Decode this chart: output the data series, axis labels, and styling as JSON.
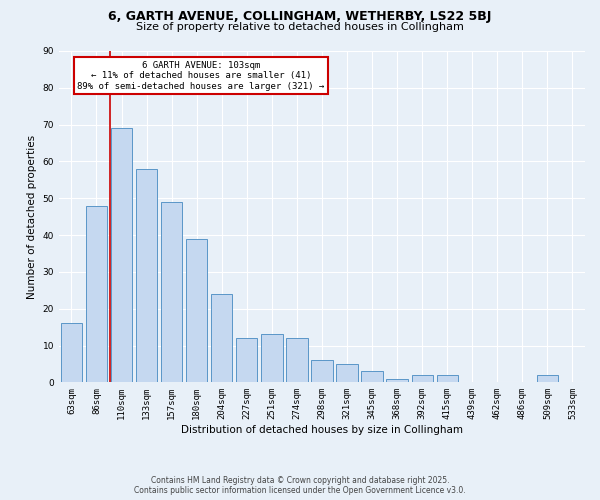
{
  "title": "6, GARTH AVENUE, COLLINGHAM, WETHERBY, LS22 5BJ",
  "subtitle": "Size of property relative to detached houses in Collingham",
  "xlabel": "Distribution of detached houses by size in Collingham",
  "ylabel": "Number of detached properties",
  "bar_color": "#c5d8f0",
  "bar_edge_color": "#5a96c8",
  "background_color": "#e8f0f8",
  "categories": [
    "63sqm",
    "86sqm",
    "110sqm",
    "133sqm",
    "157sqm",
    "180sqm",
    "204sqm",
    "227sqm",
    "251sqm",
    "274sqm",
    "298sqm",
    "321sqm",
    "345sqm",
    "368sqm",
    "392sqm",
    "415sqm",
    "439sqm",
    "462sqm",
    "486sqm",
    "509sqm",
    "533sqm"
  ],
  "values": [
    16,
    48,
    69,
    58,
    49,
    39,
    24,
    12,
    13,
    12,
    6,
    5,
    3,
    1,
    2,
    2,
    0,
    0,
    0,
    2,
    0
  ],
  "ylim": [
    0,
    90
  ],
  "yticks": [
    0,
    10,
    20,
    30,
    40,
    50,
    60,
    70,
    80,
    90
  ],
  "vline_index": 1.55,
  "vline_color": "#cc0000",
  "annotation_title": "6 GARTH AVENUE: 103sqm",
  "annotation_line1": "← 11% of detached houses are smaller (41)",
  "annotation_line2": "89% of semi-detached houses are larger (321) →",
  "annotation_box_color": "#ffffff",
  "annotation_box_edge": "#cc0000",
  "footer1": "Contains HM Land Registry data © Crown copyright and database right 2025.",
  "footer2": "Contains public sector information licensed under the Open Government Licence v3.0.",
  "grid_color": "#ffffff",
  "title_fontsize": 9,
  "subtitle_fontsize": 8,
  "axis_label_fontsize": 7.5,
  "tick_fontsize": 6.5,
  "annotation_fontsize": 6.5,
  "footer_fontsize": 5.5
}
